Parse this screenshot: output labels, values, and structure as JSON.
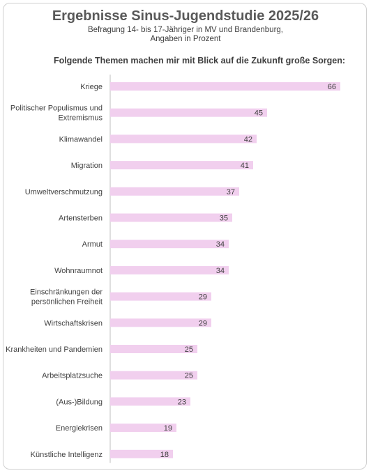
{
  "header": {
    "title": "Ergebnisse Sinus-Jugendstudie 2025/26",
    "subtitle_line1": "Befragung 14- bis 17-Jähriger in MV und Brandenburg,",
    "subtitle_line2": "Angaben in Prozent",
    "question": "Folgende Themen machen mir mit Blick auf die Zukunft große Sorgen:"
  },
  "colors": {
    "bar": "#f1cfee",
    "axis": "#bfbfbf",
    "text": "#404040",
    "title": "#595959"
  },
  "chart_data": {
    "type": "bar",
    "orientation": "horizontal",
    "title": "Ergebnisse Sinus-Jugendstudie 2025/26",
    "subtitle": "Befragung 14- bis 17-Jähriger in MV und Brandenburg, Angaben in Prozent",
    "categories": [
      [
        "Kriege"
      ],
      [
        "Politischer Populismus und",
        "Extremismus"
      ],
      [
        "Klimawandel"
      ],
      [
        "Migration"
      ],
      [
        "Umweltverschmutzung"
      ],
      [
        "Artensterben"
      ],
      [
        "Armut"
      ],
      [
        "Wohnraumnot"
      ],
      [
        "Einschränkungen der",
        "persönlichen Freiheit"
      ],
      [
        "Wirtschaftskrisen"
      ],
      [
        "Krankheiten und Pandemien"
      ],
      [
        "Arbeitsplatzsuche"
      ],
      [
        "(Aus-)Bildung"
      ],
      [
        "Energiekrisen"
      ],
      [
        "Künstliche Intelligenz"
      ]
    ],
    "values": [
      66,
      45,
      42,
      41,
      37,
      35,
      34,
      34,
      29,
      29,
      25,
      25,
      23,
      19,
      18
    ],
    "xlim": [
      0,
      66
    ],
    "grid": false,
    "legend": "none"
  }
}
